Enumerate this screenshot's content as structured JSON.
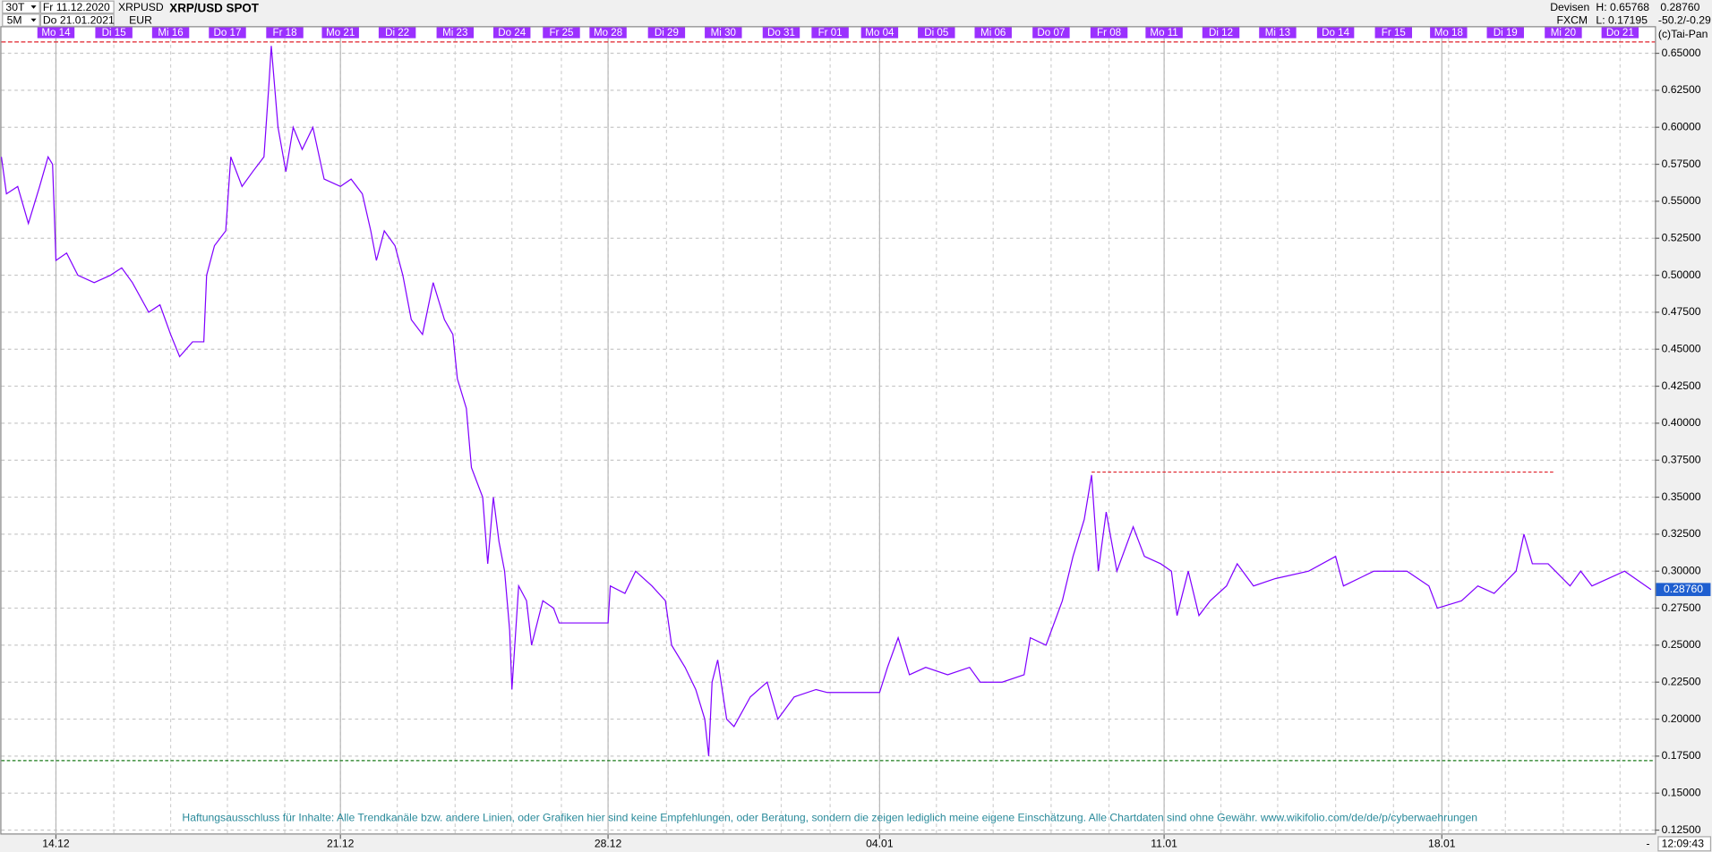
{
  "chart_data": {
    "type": "line",
    "title": "XRP/USD SPOT",
    "header": {
      "interval": "30T",
      "start": "Fr 11.12.2020",
      "symbol": "XRPUSD",
      "sub_interval": "5M",
      "end": "Do 21.01.2021",
      "currency": "EUR",
      "group": "Devisen",
      "source": "FXCM",
      "last": "0.28760",
      "change": "-50.2/-0.29",
      "copyright": "(c)Tai-Pan",
      "time": "12:09:43",
      "corner": "-"
    },
    "disclaimer": "Haftungsausschluss für Inhalte: Alle Trendkanäle bzw. andere Linien, oder Grafiken hier sind keine Empfehlungen, oder Beratung, sondern die zeigen lediglich meine eigene Einschätzung. Alle Chartdaten sind ohne Gewähr.  www.wikifolio.com/de/de/p/cyberwaehrungen",
    "high": {
      "value": 0.65768,
      "label": "H: 0.65768",
      "color": "#e0202a"
    },
    "low": {
      "value": 0.17195,
      "label": "L: 0.17195",
      "color": "#1a7a1a"
    },
    "last_price": {
      "value": 0.2876,
      "label": "0.28760",
      "color": "#1f5fd0"
    },
    "trendline": {
      "x": [
        18.42,
        26.65
      ],
      "y": 0.367,
      "color": "#e0202a"
    },
    "grid": true,
    "xlim": [
      -0.97,
      28.44
    ],
    "ylim": [
      0.122,
      0.658
    ],
    "xticks": [
      {
        "value": 0,
        "label": "14.12"
      },
      {
        "value": 5.06,
        "label": "21.12"
      },
      {
        "value": 9.82,
        "label": "28.12"
      },
      {
        "value": 14.65,
        "label": "04.01"
      },
      {
        "value": 19.71,
        "label": "11.01"
      },
      {
        "value": 24.65,
        "label": "18.01"
      }
    ],
    "day_ticks": [
      {
        "value": 0,
        "label": "Mo 14"
      },
      {
        "value": 1.03,
        "label": "Di 15"
      },
      {
        "value": 2.04,
        "label": "Mi 16"
      },
      {
        "value": 3.05,
        "label": "Do 17"
      },
      {
        "value": 4.07,
        "label": "Fr 18"
      },
      {
        "value": 5.06,
        "label": "Mo 21"
      },
      {
        "value": 6.07,
        "label": "Di 22"
      },
      {
        "value": 7.1,
        "label": "Mi 23"
      },
      {
        "value": 8.11,
        "label": "Do 24"
      },
      {
        "value": 8.99,
        "label": "Fr 25"
      },
      {
        "value": 9.82,
        "label": "Mo 28"
      },
      {
        "value": 10.86,
        "label": "Di 29"
      },
      {
        "value": 11.87,
        "label": "Mi 30"
      },
      {
        "value": 12.9,
        "label": "Do 31"
      },
      {
        "value": 13.77,
        "label": "Fr 01"
      },
      {
        "value": 14.65,
        "label": "Mo 04"
      },
      {
        "value": 15.66,
        "label": "Di 05"
      },
      {
        "value": 16.67,
        "label": "Mi 06"
      },
      {
        "value": 17.7,
        "label": "Do 07"
      },
      {
        "value": 18.73,
        "label": "Fr 08"
      },
      {
        "value": 19.71,
        "label": "Mo 11"
      },
      {
        "value": 20.72,
        "label": "Di 12"
      },
      {
        "value": 21.73,
        "label": "Mi 13"
      },
      {
        "value": 22.76,
        "label": "Do 14"
      },
      {
        "value": 23.79,
        "label": "Fr 15"
      },
      {
        "value": 24.77,
        "label": "Mo 18"
      },
      {
        "value": 25.78,
        "label": "Di 19"
      },
      {
        "value": 26.81,
        "label": "Mi 20"
      },
      {
        "value": 27.82,
        "label": "Do 21"
      }
    ],
    "yticks": [
      {
        "value": 0.125,
        "label": "0.12500"
      },
      {
        "value": 0.15,
        "label": "0.15000"
      },
      {
        "value": 0.175,
        "label": "0.17500"
      },
      {
        "value": 0.2,
        "label": "0.20000"
      },
      {
        "value": 0.225,
        "label": "0.22500"
      },
      {
        "value": 0.25,
        "label": "0.25000"
      },
      {
        "value": 0.275,
        "label": "0.27500"
      },
      {
        "value": 0.3,
        "label": "0.30000"
      },
      {
        "value": 0.325,
        "label": "0.32500"
      },
      {
        "value": 0.35,
        "label": "0.35000"
      },
      {
        "value": 0.375,
        "label": "0.37500"
      },
      {
        "value": 0.4,
        "label": "0.40000"
      },
      {
        "value": 0.425,
        "label": "0.42500"
      },
      {
        "value": 0.45,
        "label": "0.45000"
      },
      {
        "value": 0.475,
        "label": "0.47500"
      },
      {
        "value": 0.5,
        "label": "0.50000"
      },
      {
        "value": 0.525,
        "label": "0.52500"
      },
      {
        "value": 0.55,
        "label": "0.55000"
      },
      {
        "value": 0.575,
        "label": "0.57500"
      },
      {
        "value": 0.6,
        "label": "0.60000"
      },
      {
        "value": 0.625,
        "label": "0.62500"
      },
      {
        "value": 0.65,
        "label": "0.65000"
      }
    ],
    "x": [
      -0.97,
      -0.88,
      -0.68,
      -0.49,
      -0.29,
      -0.14,
      -0.06,
      0,
      0.19,
      0.39,
      0.68,
      0.97,
      1.17,
      1.36,
      1.65,
      1.85,
      2.04,
      2.2,
      2.43,
      2.63,
      2.68,
      2.82,
      3.02,
      3.11,
      3.31,
      3.5,
      3.7,
      3.79,
      3.83,
      3.95,
      4.09,
      4.22,
      4.38,
      4.57,
      4.77,
      5.06,
      5.25,
      5.45,
      5.6,
      5.7,
      5.84,
      6.03,
      6.17,
      6.32,
      6.52,
      6.71,
      6.91,
      7.06,
      7.14,
      7.3,
      7.39,
      7.59,
      7.68,
      7.78,
      7.88,
      7.98,
      8.07,
      8.11,
      8.23,
      8.37,
      8.46,
      8.66,
      8.85,
      8.95,
      9.82,
      9.86,
      10.12,
      10.31,
      10.6,
      10.84,
      10.95,
      11.19,
      11.38,
      11.54,
      11.61,
      11.67,
      11.77,
      11.93,
      12.06,
      12.35,
      12.65,
      12.84,
      13.13,
      13.52,
      13.72,
      14.65,
      14.79,
      14.98,
      15.18,
      15.47,
      15.86,
      16.25,
      16.44,
      16.83,
      17.22,
      17.33,
      17.61,
      17.9,
      18.09,
      18.29,
      18.42,
      18.54,
      18.68,
      18.87,
      19.16,
      19.36,
      19.65,
      19.84,
      19.94,
      20.14,
      20.33,
      20.53,
      20.82,
      21.01,
      21.3,
      21.69,
      22.28,
      22.76,
      22.9,
      23.44,
      24.03,
      24.42,
      24.57,
      25,
      25.29,
      25.58,
      25.97,
      26.11,
      26.26,
      26.54,
      26.93,
      27.12,
      27.32,
      27.61,
      27.9,
      28.09,
      28.37
    ],
    "series": [
      {
        "name": "XRPUSD",
        "color": "#8000ff",
        "values": [
          0.58,
          0.555,
          0.56,
          0.535,
          0.56,
          0.58,
          0.575,
          0.51,
          0.515,
          0.5,
          0.495,
          0.5,
          0.505,
          0.495,
          0.475,
          0.48,
          0.46,
          0.445,
          0.455,
          0.455,
          0.5,
          0.52,
          0.53,
          0.58,
          0.56,
          0.57,
          0.58,
          0.63,
          0.655,
          0.6,
          0.57,
          0.6,
          0.585,
          0.6,
          0.565,
          0.56,
          0.565,
          0.555,
          0.53,
          0.51,
          0.53,
          0.52,
          0.5,
          0.47,
          0.46,
          0.495,
          0.47,
          0.46,
          0.43,
          0.41,
          0.37,
          0.35,
          0.305,
          0.35,
          0.32,
          0.3,
          0.26,
          0.22,
          0.29,
          0.28,
          0.25,
          0.28,
          0.275,
          0.265,
          0.265,
          0.29,
          0.285,
          0.3,
          0.29,
          0.28,
          0.25,
          0.235,
          0.22,
          0.2,
          0.175,
          0.225,
          0.24,
          0.2,
          0.195,
          0.215,
          0.225,
          0.2,
          0.215,
          0.22,
          0.218,
          0.218,
          0.235,
          0.255,
          0.23,
          0.235,
          0.23,
          0.235,
          0.225,
          0.225,
          0.23,
          0.255,
          0.25,
          0.28,
          0.31,
          0.335,
          0.365,
          0.3,
          0.34,
          0.3,
          0.33,
          0.31,
          0.305,
          0.3,
          0.27,
          0.3,
          0.27,
          0.28,
          0.29,
          0.305,
          0.29,
          0.295,
          0.3,
          0.31,
          0.29,
          0.3,
          0.3,
          0.29,
          0.275,
          0.28,
          0.29,
          0.285,
          0.3,
          0.325,
          0.305,
          0.305,
          0.29,
          0.3,
          0.29,
          0.295,
          0.3,
          0.295,
          0.2876
        ]
      }
    ]
  }
}
